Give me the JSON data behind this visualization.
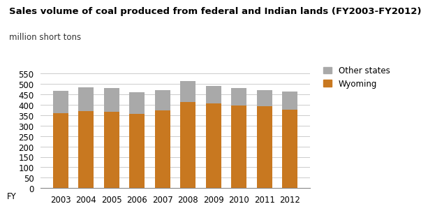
{
  "years": [
    "2003",
    "2004",
    "2005",
    "2006",
    "2007",
    "2008",
    "2009",
    "2010",
    "2011",
    "2012"
  ],
  "wyoming": [
    360,
    370,
    367,
    357,
    372,
    413,
    405,
    398,
    394,
    376
  ],
  "other_states": [
    107,
    114,
    114,
    102,
    98,
    100,
    85,
    81,
    75,
    87
  ],
  "wyoming_color": "#C87820",
  "other_states_color": "#A9A9A9",
  "title": "Sales volume of coal produced from federal and Indian lands (FY2003-FY2012)",
  "subtitle": "million short tons",
  "xlabel": "FY",
  "ylim": [
    0,
    575
  ],
  "yticks": [
    0,
    50,
    100,
    150,
    200,
    250,
    300,
    350,
    400,
    450,
    500,
    550
  ],
  "bg_color": "#FFFFFF",
  "grid_color": "#CCCCCC",
  "title_fontsize": 9.5,
  "subtitle_fontsize": 8.5,
  "label_fontsize": 8.5,
  "tick_fontsize": 8.5
}
